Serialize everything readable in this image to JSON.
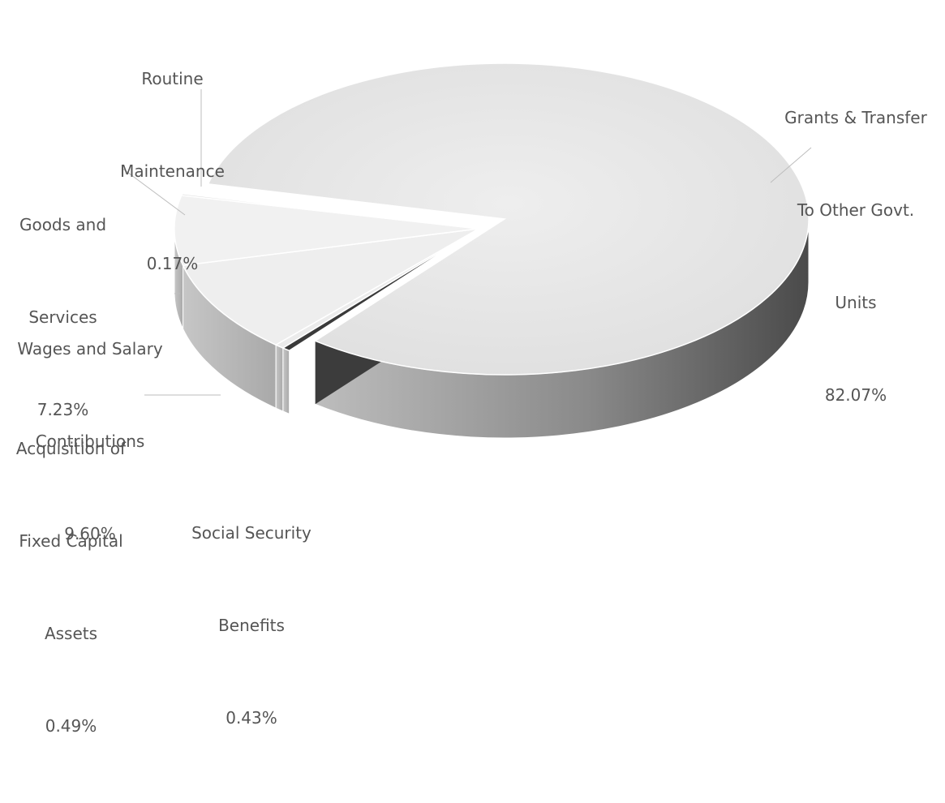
{
  "chart_data": {
    "type": "pie",
    "title": "",
    "three_d": true,
    "exploded_slice": "Grants & Transfer To Other Govt. Units",
    "slices": [
      {
        "label": "Grants & Transfer To Other Govt. Units",
        "label_lines": [
          "Grants & Transfer",
          "To Other Govt.",
          "Units"
        ],
        "value": 82.07,
        "value_label": "82.07%",
        "color": "#e6e6e6"
      },
      {
        "label": "Social Security Benefits",
        "label_lines": [
          "Social Security",
          "Benefits"
        ],
        "value": 0.43,
        "value_label": "0.43%",
        "color": "#3a3a3a"
      },
      {
        "label": "Acquisition of Fixed Capital Assets",
        "label_lines": [
          "Acquisition of",
          "Fixed Capital",
          "Assets"
        ],
        "value": 0.49,
        "value_label": "0.49%",
        "color": "#ebebeb"
      },
      {
        "label": "Wages and Salary Contributions",
        "label_lines": [
          "Wages and Salary",
          "Contributions"
        ],
        "value": 9.6,
        "value_label": "9.60%",
        "color": "#eeeeee"
      },
      {
        "label": "Goods and Services",
        "label_lines": [
          "Goods and",
          "Services"
        ],
        "value": 7.23,
        "value_label": "7.23%",
        "color": "#f1f1f1"
      },
      {
        "label": "Routine Maintenance",
        "label_lines": [
          "Routine",
          "Maintenance"
        ],
        "value": 0.17,
        "value_label": "0.17%",
        "color": "#e0e0e0"
      }
    ]
  }
}
